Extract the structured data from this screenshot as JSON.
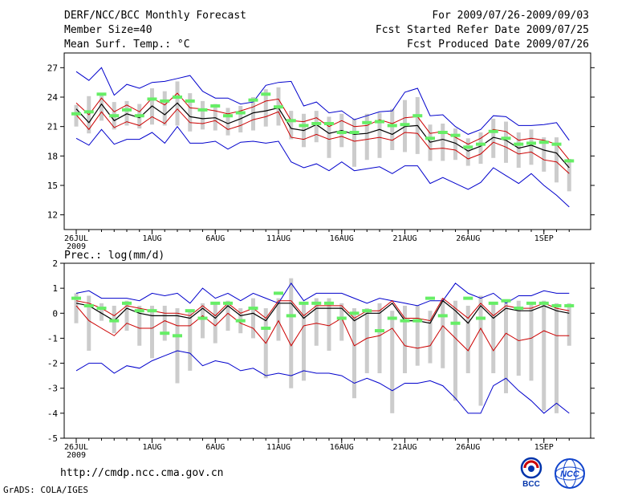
{
  "header": {
    "title": "DERF/NCC/BCC Monthly Forecast",
    "member_size": "Member Size=40",
    "variable": "Mean Surf. Temp.: °C",
    "period": "For 2009/07/26-2009/09/03",
    "fcst_started": "Fcst Started Refer Date 2009/07/25",
    "fcst_produced": "Fcst Produced Date 2009/07/26"
  },
  "footer": {
    "url": "http://cmdp.ncc.cma.gov.cn",
    "credit": "GrADS: COLA/IGES",
    "logo_bcc": "BCC",
    "logo_ncc": "NCC"
  },
  "colors": {
    "max_min_line": "#0000cc",
    "spread_line": "#cc0000",
    "mean_line": "#000000",
    "box": "#cccccc",
    "marker": "#66ee66"
  },
  "chart_data": [
    {
      "type": "box-line",
      "name": "temperature",
      "title": "Mean Surf. Temp.: °C",
      "ylim": [
        10.5,
        28.5
      ],
      "yticks": [
        12,
        15,
        18,
        21,
        24,
        27
      ],
      "x_day_range": [
        0,
        39
      ],
      "xticks": [
        {
          "day": 0,
          "label": "26JUL",
          "sublabel": "2009"
        },
        {
          "day": 6,
          "label": "1AUG"
        },
        {
          "day": 11,
          "label": "6AUG"
        },
        {
          "day": 16,
          "label": "11AUG"
        },
        {
          "day": 21,
          "label": "16AUG"
        },
        {
          "day": 26,
          "label": "21AUG"
        },
        {
          "day": 31,
          "label": "26AUG"
        },
        {
          "day": 37,
          "label": "1SEP"
        }
      ],
      "series": {
        "max": [
          26.6,
          25.7,
          27.0,
          24.2,
          25.3,
          24.9,
          25.5,
          25.6,
          25.9,
          26.2,
          24.6,
          23.9,
          23.9,
          23.3,
          23.5,
          25.2,
          25.5,
          25.6,
          23.1,
          23.5,
          22.4,
          22.6,
          21.7,
          22.1,
          22.5,
          22.6,
          24.5,
          24.9,
          22.1,
          22.2,
          21.0,
          20.2,
          20.7,
          22.1,
          22.0,
          21.1,
          21.1,
          21.2,
          21.4,
          19.6
        ],
        "upper": [
          23.4,
          22.2,
          23.9,
          22.5,
          23.2,
          22.5,
          23.9,
          23.2,
          24.4,
          22.9,
          22.8,
          22.6,
          22.3,
          22.6,
          23.0,
          23.6,
          23.8,
          21.6,
          21.5,
          21.9,
          21.0,
          21.6,
          21.0,
          21.1,
          21.7,
          21.3,
          21.9,
          22.0,
          20.3,
          20.5,
          19.9,
          19.2,
          19.8,
          20.7,
          20.5,
          19.6,
          19.8,
          19.6,
          19.2,
          17.6
        ],
        "mean": [
          22.8,
          21.4,
          23.3,
          21.6,
          22.3,
          21.9,
          23.1,
          22.2,
          23.4,
          22.0,
          21.8,
          21.9,
          21.3,
          21.8,
          22.4,
          22.6,
          22.9,
          20.8,
          20.6,
          21.2,
          20.3,
          20.6,
          20.2,
          20.3,
          20.7,
          20.2,
          21.0,
          21.1,
          19.4,
          19.7,
          19.3,
          18.5,
          19.0,
          19.9,
          19.6,
          18.8,
          19.1,
          18.6,
          18.3,
          16.8
        ],
        "lower": [
          22.2,
          20.7,
          22.5,
          20.9,
          21.5,
          21.1,
          22.0,
          21.3,
          22.8,
          21.4,
          21.3,
          21.6,
          20.7,
          21.1,
          21.7,
          22.0,
          22.5,
          19.9,
          19.7,
          20.2,
          19.7,
          20.0,
          19.5,
          19.7,
          19.9,
          19.6,
          20.4,
          20.3,
          18.7,
          18.8,
          18.6,
          17.7,
          18.2,
          19.4,
          18.9,
          18.2,
          18.4,
          17.6,
          17.4,
          16.2
        ],
        "min": [
          19.8,
          19.1,
          20.7,
          19.2,
          19.7,
          19.7,
          20.4,
          19.3,
          21.0,
          19.3,
          19.3,
          19.5,
          18.7,
          19.4,
          19.5,
          19.3,
          19.5,
          17.4,
          16.8,
          17.2,
          16.5,
          17.4,
          16.5,
          16.7,
          16.9,
          16.2,
          17.0,
          17.0,
          15.2,
          15.8,
          15.2,
          14.6,
          15.3,
          16.8,
          16.0,
          15.2,
          16.2,
          15.0,
          14.0,
          12.8
        ],
        "box_top": [
          23.2,
          24.1,
          24.4,
          23.5,
          23.6,
          23.3,
          24.9,
          24.6,
          25.6,
          24.4,
          23.6,
          23.3,
          22.9,
          23.1,
          24.0,
          24.8,
          25.0,
          22.6,
          22.3,
          22.6,
          22.0,
          22.3,
          21.8,
          22.3,
          22.4,
          22.8,
          23.7,
          24.0,
          21.2,
          21.3,
          20.8,
          19.8,
          20.4,
          21.8,
          21.5,
          20.4,
          20.7,
          19.9,
          19.9,
          17.7
        ],
        "box_bottom": [
          21.0,
          20.3,
          21.6,
          20.7,
          21.1,
          20.8,
          21.2,
          21.1,
          21.1,
          20.5,
          20.7,
          20.6,
          20.1,
          20.4,
          20.6,
          21.0,
          21.1,
          19.7,
          18.9,
          19.4,
          17.8,
          18.9,
          16.9,
          17.6,
          17.8,
          18.6,
          18.4,
          18.2,
          17.5,
          17.5,
          17.6,
          17.0,
          17.2,
          17.8,
          17.3,
          16.8,
          17.1,
          16.4,
          15.3,
          14.4
        ],
        "marker": [
          22.3,
          22.5,
          24.3,
          22.1,
          22.7,
          22.1,
          23.8,
          23.6,
          24.0,
          23.6,
          22.7,
          23.1,
          22.1,
          22.4,
          23.7,
          24.3,
          23.0,
          21.6,
          21.1,
          21.3,
          21.3,
          20.4,
          20.4,
          21.4,
          21.5,
          21.1,
          21.2,
          22.1,
          19.8,
          20.4,
          20.1,
          18.9,
          19.2,
          20.5,
          19.8,
          19.2,
          19.3,
          19.4,
          19.2,
          17.5
        ]
      }
    },
    {
      "type": "box-line",
      "name": "precipitation",
      "title": "Prec.: log(mm/d)",
      "ylim": [
        -5,
        2
      ],
      "yticks": [
        -5,
        -4,
        -3,
        -2,
        -1,
        0,
        1,
        2
      ],
      "x_day_range": [
        0,
        39
      ],
      "xticks": [
        {
          "day": 0,
          "label": "26JUL",
          "sublabel": "2009"
        },
        {
          "day": 6,
          "label": "1AUG"
        },
        {
          "day": 11,
          "label": "6AUG"
        },
        {
          "day": 16,
          "label": "11AUG"
        },
        {
          "day": 21,
          "label": "16AUG"
        },
        {
          "day": 26,
          "label": "21AUG"
        },
        {
          "day": 31,
          "label": "26AUG"
        },
        {
          "day": 37,
          "label": "1SEP"
        }
      ],
      "series": {
        "max": [
          0.8,
          0.9,
          0.6,
          0.6,
          0.6,
          0.5,
          0.8,
          0.7,
          0.8,
          0.4,
          1.0,
          0.6,
          0.8,
          0.5,
          0.8,
          0.6,
          0.4,
          1.2,
          0.5,
          0.8,
          0.8,
          0.8,
          0.6,
          0.4,
          0.6,
          0.5,
          0.4,
          0.3,
          0.5,
          0.5,
          1.2,
          0.8,
          0.6,
          0.8,
          0.4,
          0.7,
          0.7,
          0.9,
          0.8,
          0.8
        ],
        "upper": [
          0.5,
          0.4,
          0.2,
          -0.1,
          0.3,
          0.2,
          0.1,
          0.0,
          0.0,
          -0.1,
          0.3,
          -0.1,
          0.4,
          0.0,
          0.2,
          -0.2,
          0.5,
          0.5,
          -0.1,
          0.3,
          0.3,
          0.3,
          -0.2,
          0.1,
          0.1,
          0.5,
          -0.2,
          -0.2,
          -0.3,
          0.6,
          0.2,
          -0.2,
          0.4,
          -0.1,
          0.3,
          0.2,
          0.2,
          0.4,
          0.2,
          0.1
        ],
        "mean": [
          0.4,
          0.3,
          0.0,
          -0.3,
          0.2,
          0.0,
          -0.1,
          -0.1,
          -0.1,
          -0.2,
          0.2,
          -0.2,
          0.3,
          -0.1,
          0.0,
          -0.3,
          0.4,
          0.4,
          -0.2,
          0.2,
          0.2,
          0.2,
          -0.3,
          0.0,
          0.0,
          0.4,
          -0.3,
          -0.3,
          -0.4,
          0.5,
          0.1,
          -0.4,
          0.3,
          -0.2,
          0.2,
          0.1,
          0.1,
          0.3,
          0.1,
          0.0
        ],
        "lower": [
          0.3,
          -0.3,
          -0.6,
          -0.9,
          -0.4,
          -0.6,
          -0.6,
          -0.3,
          -0.5,
          -0.5,
          -0.1,
          -0.5,
          0.0,
          -0.4,
          -0.6,
          -1.2,
          -0.3,
          -1.3,
          -0.5,
          -0.4,
          -0.5,
          -0.2,
          -1.3,
          -1.0,
          -0.9,
          -0.6,
          -1.3,
          -1.4,
          -1.3,
          -0.5,
          -1.0,
          -1.5,
          -0.6,
          -1.5,
          -0.8,
          -1.1,
          -1.0,
          -0.7,
          -0.9,
          -0.9
        ],
        "min": [
          -2.3,
          -2.0,
          -2.0,
          -2.4,
          -2.1,
          -2.2,
          -1.9,
          -1.7,
          -1.5,
          -1.6,
          -2.1,
          -1.9,
          -2.0,
          -2.3,
          -2.2,
          -2.5,
          -2.4,
          -2.5,
          -2.3,
          -2.4,
          -2.4,
          -2.5,
          -2.8,
          -2.6,
          -2.8,
          -3.1,
          -2.8,
          -2.8,
          -2.7,
          -2.9,
          -3.4,
          -4.0,
          -4.0,
          -2.9,
          -2.6,
          -3.1,
          -3.5,
          -4.0,
          -3.6,
          -4.0
        ],
        "box_top": [
          0.8,
          0.7,
          0.4,
          0.3,
          0.5,
          0.3,
          0.3,
          0.3,
          0.2,
          0.1,
          0.4,
          0.4,
          0.5,
          0.2,
          0.6,
          0.2,
          0.6,
          1.4,
          0.4,
          0.6,
          0.6,
          0.4,
          0.2,
          0.2,
          0.4,
          0.1,
          0.3,
          0.3,
          0.1,
          0.6,
          0.5,
          0.3,
          0.7,
          0.4,
          0.4,
          0.5,
          0.4,
          0.5,
          0.4,
          0.4
        ],
        "box_bottom": [
          -0.4,
          -1.5,
          -0.3,
          -0.8,
          -0.7,
          -1.3,
          -1.8,
          -1.1,
          -2.8,
          -2.3,
          -1.0,
          -1.2,
          -0.7,
          -0.8,
          -1.0,
          -2.6,
          -1.1,
          -3.0,
          -2.7,
          -1.3,
          -1.5,
          -1.1,
          -3.4,
          -2.4,
          -2.4,
          -4.0,
          -2.4,
          -2.1,
          -2.0,
          -2.2,
          -3.5,
          -2.4,
          -3.7,
          -2.4,
          -3.2,
          -2.5,
          -2.7,
          -3.9,
          -4.0,
          -1.3
        ],
        "marker": [
          0.6,
          0.3,
          0.2,
          -0.3,
          0.4,
          0.1,
          0.1,
          -0.8,
          -0.9,
          0.1,
          -0.2,
          0.4,
          0.4,
          -0.3,
          0.2,
          -0.6,
          0.8,
          -0.1,
          0.4,
          0.4,
          0.4,
          -0.2,
          0.0,
          0.1,
          -0.7,
          -0.2,
          -0.3,
          -0.3,
          0.6,
          -0.1,
          -0.4,
          0.6,
          -0.2,
          0.4,
          0.5,
          0.2,
          0.4,
          0.4,
          0.3,
          0.3
        ]
      }
    }
  ]
}
